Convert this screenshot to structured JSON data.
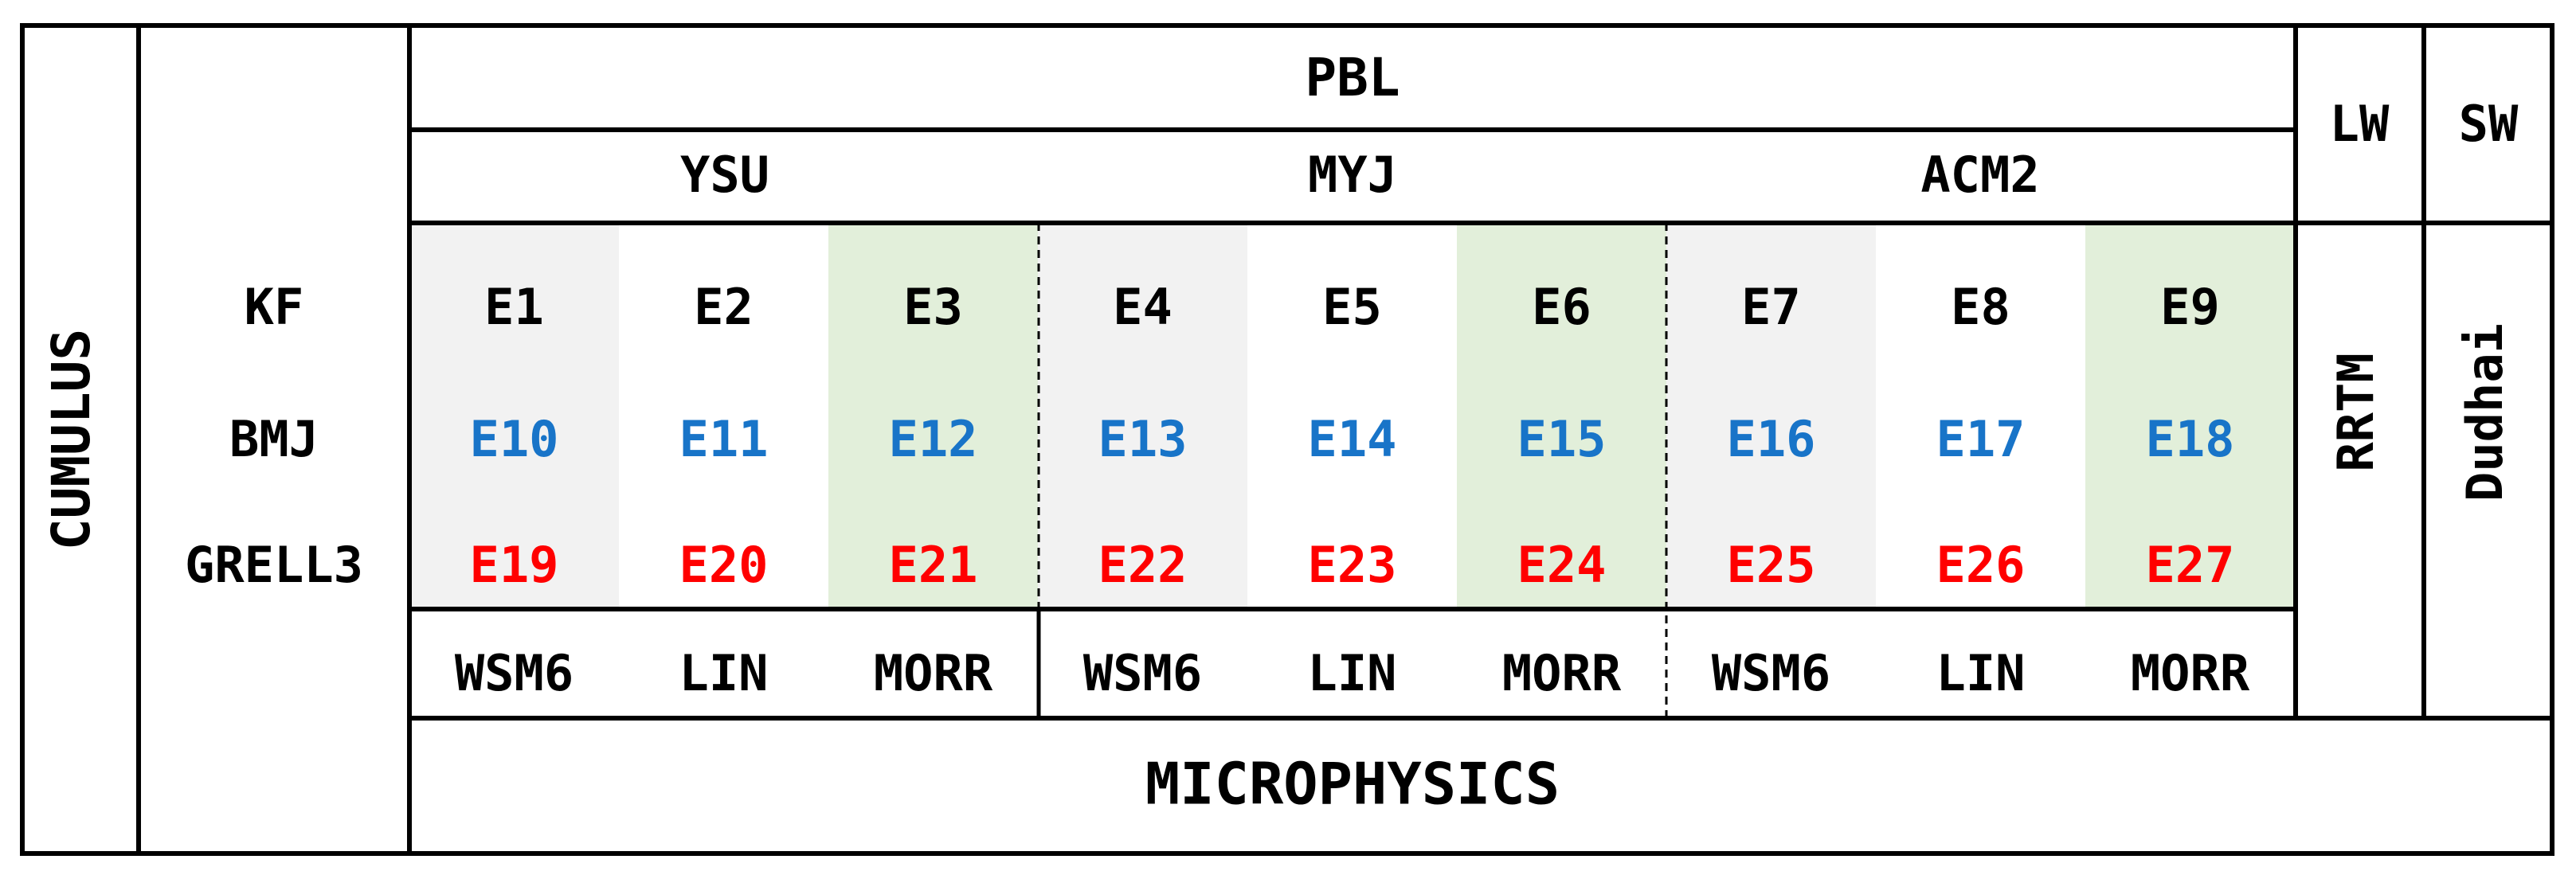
{
  "pbl": {
    "title": "PBL",
    "schemes": [
      "YSU",
      "MYJ",
      "ACM2"
    ]
  },
  "lw": {
    "title": "LW",
    "scheme": "RRTM"
  },
  "sw": {
    "title": "SW",
    "scheme": "Dudhai"
  },
  "cumulus": {
    "title": "CUMULUS",
    "schemes": [
      "KF",
      "BMJ",
      "GRELL3"
    ]
  },
  "microphysics": {
    "title": "MICROPHYSICS",
    "schemes": [
      "WSM6",
      "LIN",
      "MORR",
      "WSM6",
      "LIN",
      "MORR",
      "WSM6",
      "LIN",
      "MORR"
    ]
  },
  "experiments": [
    [
      "E1",
      "E2",
      "E3",
      "E4",
      "E5",
      "E6",
      "E7",
      "E8",
      "E9"
    ],
    [
      "E10",
      "E11",
      "E12",
      "E13",
      "E14",
      "E15",
      "E16",
      "E17",
      "E18"
    ],
    [
      "E19",
      "E20",
      "E21",
      "E22",
      "E23",
      "E24",
      "E25",
      "E26",
      "E27"
    ]
  ],
  "colors": {
    "row_colors": [
      "#000000",
      "#1874c8",
      "#ff0000"
    ],
    "shade_gray": "#f2f2f2",
    "shade_green": "#e2efda",
    "line": "#000000"
  }
}
